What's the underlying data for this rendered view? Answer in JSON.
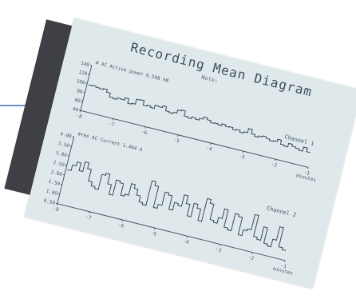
{
  "photo": {
    "title": "Recording Mean Diagram",
    "note": "Note:",
    "channels": [
      {
        "header": "#  AC  Active power  0.598 kW",
        "name": "Channel 1",
        "y_ticks": [
          "140",
          "120",
          "100",
          "80",
          "60",
          "40"
        ],
        "x_ticks": [
          "-8",
          "-7",
          "-6",
          "-5",
          "-4",
          "-3",
          "-2",
          "-1"
        ],
        "x_unit": "minutes",
        "trace": [
          98,
          99,
          97,
          96,
          98,
          92,
          84,
          82,
          86,
          85,
          90,
          80,
          82,
          93,
          94,
          84,
          86,
          83,
          90,
          89,
          93,
          84,
          82,
          85,
          92,
          94,
          83,
          81,
          85,
          82,
          86,
          91,
          87,
          83,
          84,
          82,
          86,
          83,
          84,
          80,
          82,
          78,
          81,
          90,
          81,
          77,
          80,
          82,
          79,
          76,
          78,
          83,
          74,
          72,
          80,
          76,
          74,
          71,
          80,
          72
        ]
      },
      {
        "header": "#rms  AC  Current  1.404 A",
        "name": "Channel 2",
        "y_ticks": [
          "4.00",
          "3.50",
          "3.00",
          "2.50",
          "2.00",
          "1.50",
          "1.00",
          "0.50"
        ],
        "x_ticks": [
          "-8",
          "-7",
          "-6",
          "-5",
          "-4",
          "-3",
          "-2",
          "-1"
        ],
        "x_unit": "minutes",
        "trace": [
          2.3,
          2.6,
          2.8,
          2.4,
          2.9,
          2.6,
          2.0,
          1.8,
          1.7,
          2.5,
          2.6,
          2.1,
          1.6,
          2.4,
          2.3,
          1.7,
          1.8,
          2.4,
          2.2,
          1.9,
          1.6,
          1.5,
          2.8,
          2.6,
          1.5,
          1.7,
          2.4,
          2.3,
          1.6,
          2.0,
          1.9,
          2.5,
          2.1,
          1.5,
          2.2,
          2.0,
          1.4,
          2.6,
          2.4,
          1.6,
          1.5,
          1.8,
          2.3,
          1.4,
          1.3,
          2.2,
          2.1,
          1.2,
          1.5,
          1.6,
          2.4,
          1.3,
          1.2,
          1.9,
          1.1,
          1.0,
          1.4,
          2.1,
          1.1,
          1.0
        ]
      }
    ]
  }
}
